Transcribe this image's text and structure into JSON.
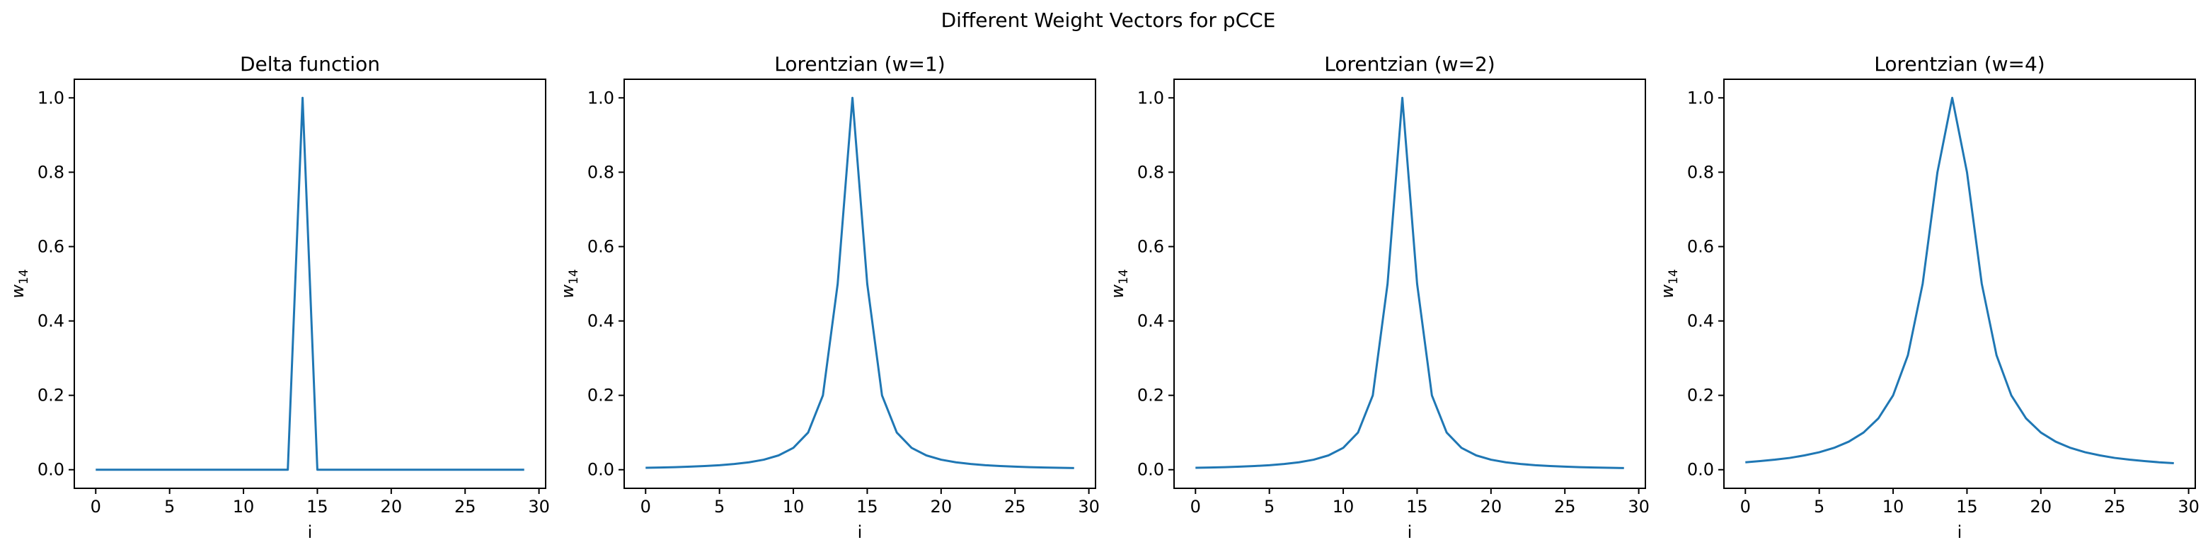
{
  "figure": {
    "title": "Different Weight Vectors for pCCE"
  },
  "chart_data": [
    {
      "type": "line",
      "title": "Delta function",
      "xlabel": "i",
      "ylabel": "w",
      "ylabel_subscript": "14",
      "xlim": [
        -1.45,
        30.45
      ],
      "ylim": [
        -0.05,
        1.05
      ],
      "xticks": [
        0,
        5,
        10,
        15,
        20,
        25,
        30
      ],
      "yticks": [
        0.0,
        0.2,
        0.4,
        0.6,
        0.8,
        1.0
      ],
      "xtick_labels": [
        "0",
        "5",
        "10",
        "15",
        "20",
        "25",
        "30"
      ],
      "ytick_labels": [
        "0.0",
        "0.2",
        "0.4",
        "0.6",
        "0.8",
        "1.0"
      ],
      "series": [
        {
          "color": "#1f77b4",
          "x": [
            0,
            1,
            2,
            3,
            4,
            5,
            6,
            7,
            8,
            9,
            10,
            11,
            12,
            13,
            14,
            15,
            16,
            17,
            18,
            19,
            20,
            21,
            22,
            23,
            24,
            25,
            26,
            27,
            28,
            29
          ],
          "y": [
            0,
            0,
            0,
            0,
            0,
            0,
            0,
            0,
            0,
            0,
            0,
            0,
            0,
            0,
            1,
            0,
            0,
            0,
            0,
            0,
            0,
            0,
            0,
            0,
            0,
            0,
            0,
            0,
            0,
            0
          ]
        }
      ]
    },
    {
      "type": "line",
      "title": "Lorentzian (w=1)",
      "xlabel": "i",
      "ylabel": "w",
      "ylabel_subscript": "14",
      "xlim": [
        -1.45,
        30.45
      ],
      "ylim": [
        -0.05,
        1.05
      ],
      "xticks": [
        0,
        5,
        10,
        15,
        20,
        25,
        30
      ],
      "yticks": [
        0.0,
        0.2,
        0.4,
        0.6,
        0.8,
        1.0
      ],
      "xtick_labels": [
        "0",
        "5",
        "10",
        "15",
        "20",
        "25",
        "30"
      ],
      "ytick_labels": [
        "0.0",
        "0.2",
        "0.4",
        "0.6",
        "0.8",
        "1.0"
      ],
      "series": [
        {
          "color": "#1f77b4",
          "x": [
            0,
            1,
            2,
            3,
            4,
            5,
            6,
            7,
            8,
            9,
            10,
            11,
            12,
            13,
            14,
            15,
            16,
            17,
            18,
            19,
            20,
            21,
            22,
            23,
            24,
            25,
            26,
            27,
            28,
            29
          ],
          "y": [
            0.0051,
            0.0059,
            0.0069,
            0.0082,
            0.0099,
            0.0122,
            0.0154,
            0.02,
            0.027,
            0.0385,
            0.0588,
            0.1,
            0.2,
            0.5,
            1.0,
            0.5,
            0.2,
            0.1,
            0.0588,
            0.0385,
            0.027,
            0.02,
            0.0154,
            0.0122,
            0.0099,
            0.0082,
            0.0069,
            0.0059,
            0.0051,
            0.0044
          ]
        }
      ]
    },
    {
      "type": "line",
      "title": "Lorentzian (w=2)",
      "xlabel": "i",
      "ylabel": "w",
      "ylabel_subscript": "14",
      "xlim": [
        -1.45,
        30.45
      ],
      "ylim": [
        -0.05,
        1.05
      ],
      "xticks": [
        0,
        5,
        10,
        15,
        20,
        25,
        30
      ],
      "yticks": [
        0.0,
        0.2,
        0.4,
        0.6,
        0.8,
        1.0
      ],
      "xtick_labels": [
        "0",
        "5",
        "10",
        "15",
        "20",
        "25",
        "30"
      ],
      "ytick_labels": [
        "0.0",
        "0.2",
        "0.4",
        "0.6",
        "0.8",
        "1.0"
      ],
      "series": [
        {
          "color": "#1f77b4",
          "x": [
            0,
            1,
            2,
            3,
            4,
            5,
            6,
            7,
            8,
            9,
            10,
            11,
            12,
            13,
            14,
            15,
            16,
            17,
            18,
            19,
            20,
            21,
            22,
            23,
            24,
            25,
            26,
            27,
            28,
            29
          ],
          "y": [
            0.0051,
            0.0059,
            0.0069,
            0.0082,
            0.0099,
            0.0122,
            0.0154,
            0.02,
            0.027,
            0.0385,
            0.0588,
            0.1,
            0.2,
            0.5,
            1.0,
            0.5,
            0.2,
            0.1,
            0.0588,
            0.0385,
            0.027,
            0.02,
            0.0154,
            0.0122,
            0.0099,
            0.0082,
            0.0069,
            0.0059,
            0.0051,
            0.0044
          ]
        }
      ]
    },
    {
      "type": "line",
      "title": "Lorentzian (w=4)",
      "xlabel": "i",
      "ylabel": "w",
      "ylabel_subscript": "14",
      "xlim": [
        -1.45,
        30.45
      ],
      "ylim": [
        -0.05,
        1.05
      ],
      "xticks": [
        0,
        5,
        10,
        15,
        20,
        25,
        30
      ],
      "yticks": [
        0.0,
        0.2,
        0.4,
        0.6,
        0.8,
        1.0
      ],
      "xtick_labels": [
        "0",
        "5",
        "10",
        "15",
        "20",
        "25",
        "30"
      ],
      "ytick_labels": [
        "0.0",
        "0.2",
        "0.4",
        "0.6",
        "0.8",
        "1.0"
      ],
      "series": [
        {
          "color": "#1f77b4",
          "x": [
            0,
            1,
            2,
            3,
            4,
            5,
            6,
            7,
            8,
            9,
            10,
            11,
            12,
            13,
            14,
            15,
            16,
            17,
            18,
            19,
            20,
            21,
            22,
            23,
            24,
            25,
            26,
            27,
            28,
            29
          ],
          "y": [
            0.02,
            0.0233,
            0.027,
            0.0317,
            0.0385,
            0.047,
            0.0588,
            0.0755,
            0.1,
            0.1379,
            0.2,
            0.3077,
            0.5,
            0.8,
            1.0,
            0.8,
            0.5,
            0.3077,
            0.2,
            0.1379,
            0.1,
            0.0755,
            0.0588,
            0.047,
            0.0385,
            0.0317,
            0.027,
            0.0233,
            0.02,
            0.0176
          ]
        }
      ]
    }
  ]
}
